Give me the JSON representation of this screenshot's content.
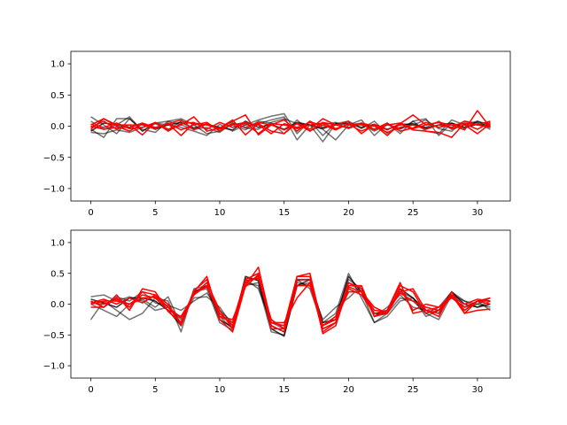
{
  "chart_data": [
    {
      "type": "line",
      "title": "",
      "xlabel": "",
      "ylabel": "",
      "xlim": [
        -1.55,
        32.55
      ],
      "ylim": [
        -1.2,
        1.2
      ],
      "xticks": [
        0,
        5,
        10,
        15,
        20,
        25,
        30
      ],
      "yticks": [
        -1.0,
        -0.5,
        0.0,
        0.5,
        1.0
      ],
      "xtick_labels": [
        "0",
        "5",
        "10",
        "15",
        "20",
        "25",
        "30"
      ],
      "ytick_labels": [
        "−1.0",
        "−0.5",
        "0.0",
        "0.5",
        "1.0"
      ],
      "grid": false,
      "x": [
        0,
        1,
        2,
        3,
        4,
        5,
        6,
        7,
        8,
        9,
        10,
        11,
        12,
        13,
        14,
        15,
        16,
        17,
        18,
        19,
        20,
        21,
        22,
        23,
        24,
        25,
        26,
        27,
        28,
        29,
        30,
        31
      ],
      "series": [
        {
          "color": "#000000",
          "opacity": 0.55,
          "values": [
            0.15,
            0.02,
            -0.12,
            0.12,
            -0.05,
            -0.1,
            0.08,
            0.12,
            0.02,
            -0.12,
            -0.08,
            0.04,
            0.02,
            0.1,
            0.16,
            0.2,
            -0.12,
            0.08,
            -0.15,
            0.05,
            0.02,
            0.1,
            -0.15,
            0.04,
            -0.05,
            0.08,
            0.12,
            -0.15,
            0.05,
            -0.04,
            0.08,
            0.02
          ]
        },
        {
          "color": "#000000",
          "opacity": 0.55,
          "values": [
            -0.05,
            -0.18,
            0.12,
            0.12,
            -0.08,
            0.05,
            0.02,
            -0.02,
            -0.08,
            -0.15,
            0.03,
            -0.08,
            0.02,
            0.04,
            0.1,
            0.15,
            -0.22,
            0.02,
            -0.25,
            0.04,
            0.08,
            -0.04,
            0.08,
            -0.12,
            0.04,
            0.02,
            0.1,
            -0.04,
            -0.08,
            0.08,
            0.05,
            -0.05
          ]
        },
        {
          "color": "#000000",
          "opacity": 0.55,
          "values": [
            0.08,
            -0.05,
            0.02,
            0.15,
            -0.08,
            0.05,
            0.08,
            0.02,
            -0.05,
            -0.02,
            -0.1,
            0.06,
            -0.03,
            -0.05,
            0.06,
            0.12,
            0.04,
            0.02,
            -0.05,
            -0.22,
            0.02,
            0.05,
            -0.05,
            0.05,
            -0.12,
            0.08,
            -0.08,
            -0.12,
            0.1,
            0.02,
            0.06,
            0.04
          ]
        },
        {
          "color": "#000000",
          "opacity": 0.55,
          "values": [
            -0.1,
            -0.12,
            -0.06,
            -0.1,
            -0.02,
            0.04,
            -0.06,
            0.08,
            0.04,
            0.02,
            -0.04,
            0.02,
            -0.06,
            0.08,
            0.05,
            -0.12,
            0.1,
            -0.08,
            0.02,
            0.06,
            -0.04,
            0.04,
            -0.08,
            0.02,
            -0.04,
            0.02,
            -0.02,
            0.08,
            -0.05,
            0.02,
            0.08,
            -0.02
          ]
        },
        {
          "color": "#000000",
          "opacity": 0.8,
          "values": [
            -0.08,
            0.05,
            0.02,
            -0.02,
            0.04,
            -0.05,
            0.02,
            0.06,
            -0.03,
            0.03,
            -0.02,
            -0.06,
            0.08,
            -0.02,
            0.03,
            -0.05,
            0.06,
            0.02,
            -0.04,
            0.03,
            0.05,
            -0.02,
            0.03,
            -0.05,
            0.02,
            0.04,
            -0.03,
            0.02,
            0.05,
            -0.02,
            0.03,
            0.01
          ]
        },
        {
          "color": "#ff0000",
          "opacity": 1.0,
          "values": [
            0.02,
            0.12,
            0.02,
            0.02,
            -0.14,
            0.06,
            -0.05,
            0.02,
            0.15,
            -0.08,
            -0.03,
            0.1,
            -0.14,
            0.04,
            -0.08,
            -0.12,
            0.05,
            -0.05,
            0.12,
            0.02,
            -0.03,
            0.05,
            0.0,
            -0.1,
            -0.02,
            0.02,
            -0.05,
            0.02,
            -0.02,
            0.08,
            0.02,
            -0.02
          ]
        },
        {
          "color": "#ff0000",
          "opacity": 1.0,
          "values": [
            -0.05,
            0.12,
            0.0,
            -0.08,
            0.04,
            -0.04,
            0.04,
            0.1,
            -0.06,
            0.04,
            -0.04,
            0.08,
            0.18,
            -0.14,
            0.02,
            0.1,
            -0.08,
            0.08,
            -0.02,
            0.02,
            0.08,
            -0.12,
            0.03,
            -0.06,
            0.04,
            0.18,
            0.02,
            0.06,
            0.02,
            -0.06,
            0.25,
            -0.02
          ]
        },
        {
          "color": "#ff0000",
          "opacity": 1.0,
          "values": [
            0.03,
            -0.02,
            0.05,
            -0.04,
            -0.02,
            0.06,
            -0.08,
            0.04,
            0.06,
            -0.05,
            0.06,
            -0.02,
            0.05,
            0.02,
            -0.12,
            0.04,
            -0.02,
            0.06,
            0.02,
            -0.06,
            0.04,
            0.02,
            -0.05,
            0.05,
            -0.08,
            -0.03,
            0.06,
            -0.02,
            0.02,
            0.04,
            -0.05,
            0.06
          ]
        },
        {
          "color": "#ff0000",
          "opacity": 1.0,
          "values": [
            -0.02,
            0.08,
            -0.05,
            0.02,
            0.02,
            -0.04,
            0.05,
            -0.06,
            0.02,
            0.06,
            -0.08,
            0.04,
            -0.02,
            0.06,
            0.02,
            -0.06,
            0.04,
            -0.08,
            0.06,
            0.02,
            -0.02,
            0.04,
            -0.06,
            0.02,
            0.05,
            -0.04,
            0.02,
            0.06,
            -0.04,
            0.02,
            -0.12,
            0.04
          ]
        },
        {
          "color": "#ff0000",
          "opacity": 1.0,
          "values": [
            0.0,
            -0.05,
            -0.02,
            -0.02,
            0.05,
            -0.02,
            0.04,
            -0.15,
            0.05,
            0.02,
            -0.05,
            0.02,
            0.06,
            -0.12,
            0.04,
            0.02,
            -0.04,
            0.02,
            0.05,
            -0.04,
            0.03,
            -0.08,
            0.02,
            -0.15,
            0.04,
            -0.06,
            -0.08,
            -0.1,
            -0.18,
            0.05,
            0.02,
            0.08
          ]
        }
      ]
    },
    {
      "type": "line",
      "title": "",
      "xlabel": "",
      "ylabel": "",
      "xlim": [
        -1.55,
        32.55
      ],
      "ylim": [
        -1.2,
        1.2
      ],
      "xticks": [
        0,
        5,
        10,
        15,
        20,
        25,
        30
      ],
      "yticks": [
        -1.0,
        -0.5,
        0.0,
        0.5,
        1.0
      ],
      "xtick_labels": [
        "0",
        "5",
        "10",
        "15",
        "20",
        "25",
        "30"
      ],
      "ytick_labels": [
        "−1.0",
        "−0.5",
        "0.0",
        "0.5",
        "1.0"
      ],
      "grid": false,
      "x": [
        0,
        1,
        2,
        3,
        4,
        5,
        6,
        7,
        8,
        9,
        10,
        11,
        12,
        13,
        14,
        15,
        16,
        17,
        18,
        19,
        20,
        21,
        22,
        23,
        24,
        25,
        26,
        27,
        28,
        29,
        30,
        31
      ],
      "series": [
        {
          "color": "#000000",
          "opacity": 0.55,
          "values": [
            0.12,
            0.15,
            0.05,
            0.12,
            0.05,
            -0.1,
            -0.05,
            -0.25,
            0.1,
            0.12,
            -0.05,
            -0.35,
            0.3,
            0.35,
            -0.35,
            -0.45,
            0.3,
            0.35,
            -0.3,
            -0.15,
            0.5,
            0.1,
            -0.3,
            -0.2,
            0.05,
            0.1,
            -0.2,
            -0.1,
            0.2,
            -0.05,
            0.0,
            0.1
          ]
        },
        {
          "color": "#000000",
          "opacity": 0.55,
          "values": [
            -0.25,
            0.05,
            -0.1,
            -0.25,
            -0.15,
            0.1,
            0.05,
            -0.45,
            0.25,
            0.3,
            -0.2,
            -0.4,
            0.35,
            0.3,
            -0.45,
            -0.5,
            0.35,
            0.3,
            -0.25,
            -0.05,
            0.1,
            0.3,
            -0.2,
            -0.1,
            0.2,
            0.1,
            -0.15,
            -0.25,
            0.15,
            -0.1,
            0.05,
            -0.1
          ]
        },
        {
          "color": "#000000",
          "opacity": 0.55,
          "values": [
            0.05,
            -0.05,
            0.12,
            0.05,
            0.2,
            0.02,
            -0.02,
            -0.1,
            0.05,
            0.18,
            -0.1,
            -0.3,
            0.4,
            0.25,
            -0.3,
            -0.4,
            0.4,
            0.25,
            -0.35,
            -0.2,
            0.4,
            0.25,
            -0.2,
            -0.05,
            0.15,
            -0.05,
            -0.1,
            -0.05,
            0.2,
            0.05,
            -0.05,
            0.05
          ]
        },
        {
          "color": "#000000",
          "opacity": 0.55,
          "values": [
            0.0,
            -0.1,
            -0.2,
            0.0,
            0.08,
            -0.05,
            0.12,
            -0.35,
            0.2,
            0.25,
            -0.3,
            -0.42,
            0.42,
            0.4,
            -0.35,
            -0.45,
            0.38,
            0.4,
            -0.4,
            -0.3,
            0.35,
            0.2,
            -0.3,
            -0.15,
            0.1,
            0.05,
            -0.15,
            -0.1,
            0.15,
            0.05,
            0.0,
            -0.05
          ]
        },
        {
          "color": "#000000",
          "opacity": 0.8,
          "values": [
            0.08,
            0.02,
            -0.05,
            0.1,
            0.1,
            0.05,
            -0.1,
            -0.35,
            0.2,
            0.3,
            -0.25,
            -0.38,
            0.45,
            0.38,
            -0.4,
            -0.52,
            0.3,
            0.4,
            -0.3,
            -0.25,
            0.45,
            0.2,
            -0.15,
            -0.15,
            0.25,
            0.1,
            -0.1,
            -0.15,
            0.2,
            0.0,
            -0.05,
            0.0
          ]
        },
        {
          "color": "#ff0000",
          "opacity": 1.0,
          "values": [
            0.05,
            -0.05,
            0.15,
            -0.1,
            0.25,
            0.2,
            -0.12,
            -0.3,
            0.2,
            0.45,
            -0.25,
            -0.45,
            0.3,
            0.6,
            -0.3,
            -0.35,
            0.45,
            0.45,
            -0.48,
            -0.35,
            0.3,
            0.3,
            -0.2,
            -0.1,
            0.3,
            0.2,
            -0.15,
            -0.05,
            0.15,
            -0.15,
            -0.1,
            -0.08
          ]
        },
        {
          "color": "#ff0000",
          "opacity": 1.0,
          "values": [
            0.02,
            0.08,
            0.0,
            0.1,
            0.02,
            0.15,
            -0.05,
            -0.3,
            0.22,
            0.4,
            -0.2,
            -0.3,
            0.4,
            0.5,
            -0.4,
            -0.4,
            0.45,
            0.5,
            -0.4,
            -0.3,
            0.25,
            0.15,
            -0.15,
            -0.1,
            0.35,
            -0.15,
            -0.1,
            -0.2,
            0.2,
            -0.15,
            0.05,
            0.1
          ]
        },
        {
          "color": "#ff0000",
          "opacity": 1.0,
          "values": [
            0.0,
            0.05,
            0.05,
            0.0,
            0.15,
            0.1,
            -0.1,
            -0.2,
            0.15,
            0.35,
            -0.1,
            -0.4,
            0.35,
            0.45,
            -0.25,
            -0.4,
            0.4,
            0.4,
            -0.35,
            -0.25,
            0.2,
            0.2,
            -0.05,
            -0.15,
            0.25,
            -0.1,
            0.0,
            -0.05,
            0.1,
            -0.05,
            0.05,
            0.05
          ]
        },
        {
          "color": "#ff0000",
          "opacity": 1.0,
          "values": [
            -0.05,
            -0.05,
            0.1,
            -0.05,
            0.2,
            0.15,
            0.0,
            -0.35,
            0.18,
            0.28,
            -0.15,
            -0.35,
            0.38,
            0.42,
            -0.3,
            -0.3,
            0.1,
            0.35,
            -0.45,
            -0.3,
            0.35,
            0.25,
            -0.2,
            -0.15,
            0.2,
            0.25,
            -0.1,
            -0.15,
            0.15,
            -0.1,
            0.05,
            0.0
          ]
        },
        {
          "color": "#ff0000",
          "opacity": 1.0,
          "values": [
            0.02,
            0.0,
            0.08,
            0.0,
            0.1,
            0.12,
            -0.05,
            -0.22,
            0.15,
            0.3,
            -0.2,
            -0.25,
            0.28,
            0.48,
            -0.35,
            -0.45,
            0.3,
            0.3,
            -0.35,
            -0.2,
            0.28,
            0.2,
            -0.1,
            -0.12,
            0.18,
            0.05,
            -0.05,
            -0.1,
            0.12,
            0.0,
            0.08,
            0.05
          ]
        }
      ]
    }
  ]
}
